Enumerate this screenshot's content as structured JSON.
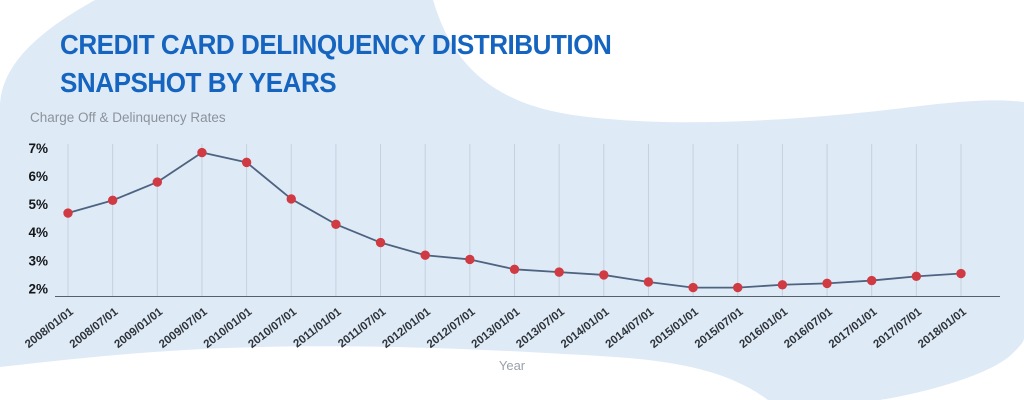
{
  "header": {
    "title_line1": "CREDIT CARD DELINQUENCY DISTRIBUTION",
    "title_line2": "SNAPSHOT BY YEARS",
    "title_color": "#1565c0"
  },
  "background": {
    "page_color": "#ffffff",
    "blob_color": "#dfeaf7"
  },
  "chart_data": {
    "type": "line",
    "title": "Credit Card Delinquency Distribution Snapshot by Years",
    "xlabel": "Year",
    "ylabel": "Charge Off & Delinquency Rates",
    "categories": [
      "2008/01/01",
      "2008/07/01",
      "2009/01/01",
      "2009/07/01",
      "2010/01/01",
      "2010/07/01",
      "2011/01/01",
      "2011/07/01",
      "2012/01/01",
      "2012/07/01",
      "2013/01/01",
      "2013/07/01",
      "2014/01/01",
      "2014/07/01",
      "2015/01/01",
      "2015/07/01",
      "2016/01/01",
      "2016/07/01",
      "2017/01/01",
      "2017/07/01",
      "2018/01/01"
    ],
    "series": [
      {
        "name": "Charge Off & Delinquency Rate (%)",
        "values": [
          4.7,
          5.15,
          5.8,
          6.85,
          6.5,
          5.2,
          4.3,
          3.65,
          3.2,
          3.05,
          2.7,
          2.6,
          2.5,
          2.25,
          2.05,
          2.05,
          2.15,
          2.2,
          2.3,
          2.45,
          2.55
        ]
      }
    ],
    "y_ticks": [
      2,
      3,
      4,
      5,
      6,
      7
    ],
    "y_tick_suffix": "%",
    "ylim": [
      1.75,
      7.15
    ],
    "grid": "vertical",
    "legend": "none",
    "line_color": "#4e6380",
    "point_color": "#d03a42",
    "gridline_color": "#c5d1de",
    "axis_color": "#55606b",
    "y_label_color": "#14171a",
    "x_label_color": "#2d3339"
  }
}
